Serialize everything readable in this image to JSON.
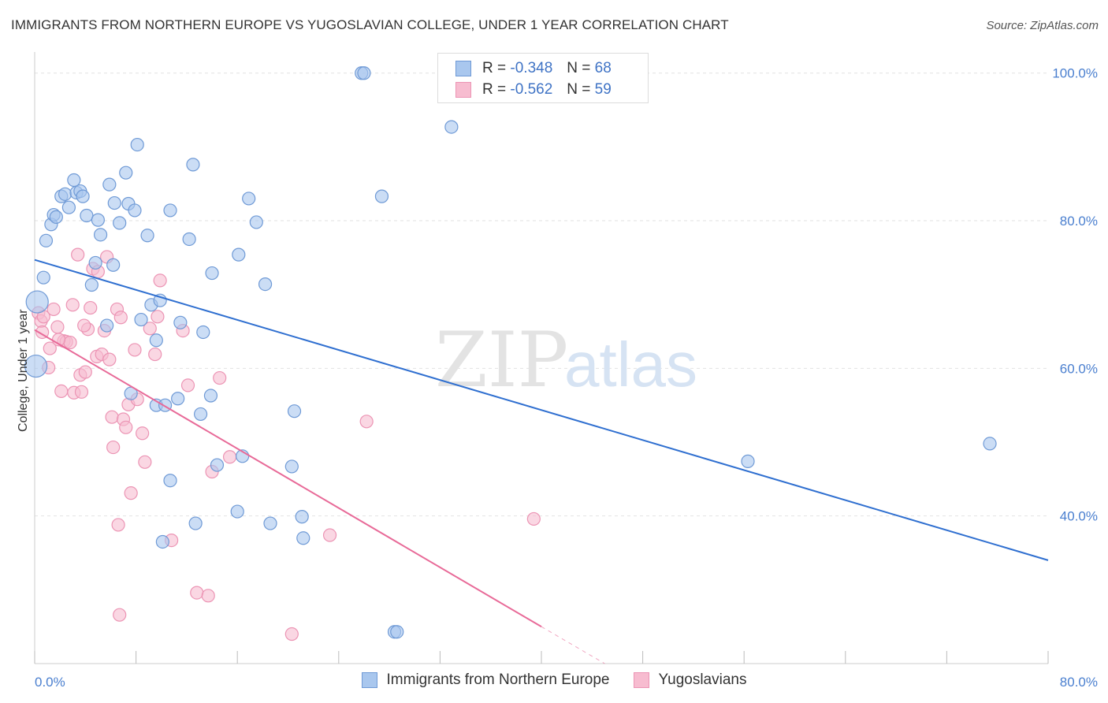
{
  "header": {
    "title": "IMMIGRANTS FROM NORTHERN EUROPE VS YUGOSLAVIAN COLLEGE, UNDER 1 YEAR CORRELATION CHART",
    "source": "Source: ZipAtlas.com"
  },
  "watermark": {
    "zip": "ZIP",
    "atlas": "atlas"
  },
  "legend": {
    "series": [
      {
        "r_label": "R = ",
        "r_value": "-0.348",
        "n_label": "N = ",
        "n_value": "68",
        "fill": "#aac8f0",
        "stroke": "#7da7de"
      },
      {
        "r_label": "R = ",
        "r_value": "-0.562",
        "n_label": "N = ",
        "n_value": "59",
        "fill": "#f8bfd2",
        "stroke": "#ef9ab8"
      }
    ]
  },
  "bottom_legend": [
    "Immigrants from Northern Europe",
    "Yugoslavians"
  ],
  "colors": {
    "blue_point_fill": "#a9c7ee",
    "blue_point_stroke": "#6f9ad6",
    "blue_line": "#2f6fd0",
    "pink_point_fill": "#f7bcd0",
    "pink_point_stroke": "#ec94b4",
    "pink_line": "#e86a98",
    "grid": "#e2e2e2",
    "tick_text": "#4a7fcf"
  },
  "chart_data": {
    "type": "scatter",
    "title": "IMMIGRANTS FROM NORTHERN EUROPE VS YUGOSLAVIAN COLLEGE, UNDER 1 YEAR CORRELATION CHART",
    "xlabel": "",
    "ylabel": "College, Under 1 year",
    "xlim": [
      0,
      80
    ],
    "ylim": [
      20,
      102
    ],
    "x_tick_labels": [
      "0.0%",
      "80.0%"
    ],
    "y_tick_labels": [
      {
        "value": 40,
        "label": "40.0%"
      },
      {
        "value": 60,
        "label": "60.0%"
      },
      {
        "value": 80,
        "label": "80.0%"
      },
      {
        "value": 100,
        "label": "100.0%"
      }
    ],
    "grid": true,
    "series": [
      {
        "name": "Immigrants from Northern Europe",
        "trend": {
          "x": [
            0,
            80
          ],
          "y": [
            74.7,
            34.0
          ]
        },
        "points": [
          [
            0.7,
            72.3
          ],
          [
            0.9,
            77.3
          ],
          [
            1.3,
            79.5
          ],
          [
            1.5,
            80.8
          ],
          [
            1.7,
            80.5
          ],
          [
            2.1,
            83.3
          ],
          [
            2.4,
            83.6
          ],
          [
            2.7,
            81.8
          ],
          [
            3.1,
            85.5
          ],
          [
            3.3,
            83.8
          ],
          [
            3.6,
            84.0
          ],
          [
            3.8,
            83.3
          ],
          [
            4.1,
            80.7
          ],
          [
            5.0,
            80.1
          ],
          [
            5.2,
            78.1
          ],
          [
            4.8,
            74.3
          ],
          [
            6.2,
            74.0
          ],
          [
            4.5,
            71.3
          ],
          [
            5.9,
            84.9
          ],
          [
            6.3,
            82.4
          ],
          [
            6.7,
            79.7
          ],
          [
            7.2,
            86.5
          ],
          [
            7.4,
            82.3
          ],
          [
            7.9,
            81.4
          ],
          [
            8.1,
            90.3
          ],
          [
            8.9,
            78.0
          ],
          [
            10.7,
            81.4
          ],
          [
            12.2,
            77.5
          ],
          [
            12.5,
            87.6
          ],
          [
            14.0,
            72.9
          ],
          [
            16.1,
            75.4
          ],
          [
            16.9,
            83.0
          ],
          [
            17.5,
            79.8
          ],
          [
            18.2,
            71.4
          ],
          [
            5.7,
            65.8
          ],
          [
            8.4,
            66.6
          ],
          [
            9.2,
            68.6
          ],
          [
            9.9,
            69.2
          ],
          [
            9.6,
            63.8
          ],
          [
            11.5,
            66.2
          ],
          [
            13.3,
            64.9
          ],
          [
            7.6,
            56.6
          ],
          [
            9.6,
            55.0
          ],
          [
            10.3,
            55.0
          ],
          [
            11.3,
            55.9
          ],
          [
            13.1,
            53.8
          ],
          [
            13.9,
            56.3
          ],
          [
            20.5,
            54.2
          ],
          [
            10.7,
            44.8
          ],
          [
            14.4,
            46.9
          ],
          [
            16.4,
            48.1
          ],
          [
            20.3,
            46.7
          ],
          [
            12.7,
            39.0
          ],
          [
            16.0,
            40.6
          ],
          [
            18.6,
            39.0
          ],
          [
            21.1,
            39.9
          ],
          [
            21.2,
            37.0
          ],
          [
            10.1,
            36.5
          ],
          [
            25.8,
            100.0
          ],
          [
            26.0,
            100.0
          ],
          [
            32.9,
            92.7
          ],
          [
            27.4,
            83.3
          ],
          [
            56.3,
            47.4
          ],
          [
            75.4,
            49.8
          ],
          [
            28.4,
            24.3
          ],
          [
            28.6,
            24.3
          ],
          [
            0.2,
            69.0
          ],
          [
            0.1,
            60.3
          ]
        ]
      },
      {
        "name": "Yugoslavians",
        "trend": {
          "x": [
            0,
            40
          ],
          "y": [
            65.2,
            25.0
          ]
        },
        "trend_dashed": {
          "x": [
            40,
            45
          ],
          "y": [
            25.0,
            20.0
          ]
        },
        "points": [
          [
            0.3,
            67.5
          ],
          [
            0.5,
            66.4
          ],
          [
            0.6,
            64.9
          ],
          [
            0.7,
            67.0
          ],
          [
            1.1,
            60.1
          ],
          [
            1.2,
            62.7
          ],
          [
            1.5,
            68.0
          ],
          [
            1.8,
            65.6
          ],
          [
            2.3,
            63.7
          ],
          [
            2.5,
            63.6
          ],
          [
            2.8,
            63.5
          ],
          [
            3.0,
            68.6
          ],
          [
            3.1,
            56.7
          ],
          [
            3.4,
            75.4
          ],
          [
            3.6,
            59.1
          ],
          [
            3.7,
            56.8
          ],
          [
            4.0,
            59.5
          ],
          [
            4.2,
            65.3
          ],
          [
            4.4,
            68.2
          ],
          [
            4.6,
            73.5
          ],
          [
            4.9,
            61.6
          ],
          [
            5.0,
            73.1
          ],
          [
            5.3,
            61.9
          ],
          [
            5.5,
            65.1
          ],
          [
            5.7,
            75.1
          ],
          [
            5.9,
            61.2
          ],
          [
            6.1,
            53.4
          ],
          [
            6.2,
            49.3
          ],
          [
            6.5,
            68.0
          ],
          [
            6.8,
            66.9
          ],
          [
            7.0,
            53.1
          ],
          [
            7.2,
            52.0
          ],
          [
            7.4,
            55.1
          ],
          [
            7.6,
            43.1
          ],
          [
            7.9,
            62.5
          ],
          [
            8.1,
            55.8
          ],
          [
            8.5,
            51.2
          ],
          [
            8.7,
            47.3
          ],
          [
            9.1,
            65.4
          ],
          [
            9.5,
            61.9
          ],
          [
            9.7,
            67.0
          ],
          [
            9.9,
            71.9
          ],
          [
            10.8,
            36.7
          ],
          [
            11.7,
            65.1
          ],
          [
            12.1,
            57.7
          ],
          [
            12.8,
            29.6
          ],
          [
            13.7,
            29.2
          ],
          [
            14.0,
            46.0
          ],
          [
            14.6,
            58.7
          ],
          [
            15.4,
            48.0
          ],
          [
            20.3,
            24.0
          ],
          [
            23.3,
            37.4
          ],
          [
            26.2,
            52.8
          ],
          [
            39.4,
            39.6
          ],
          [
            6.6,
            38.8
          ],
          [
            6.7,
            26.6
          ],
          [
            2.1,
            56.9
          ],
          [
            3.9,
            65.8
          ],
          [
            1.9,
            63.9
          ]
        ]
      }
    ]
  }
}
